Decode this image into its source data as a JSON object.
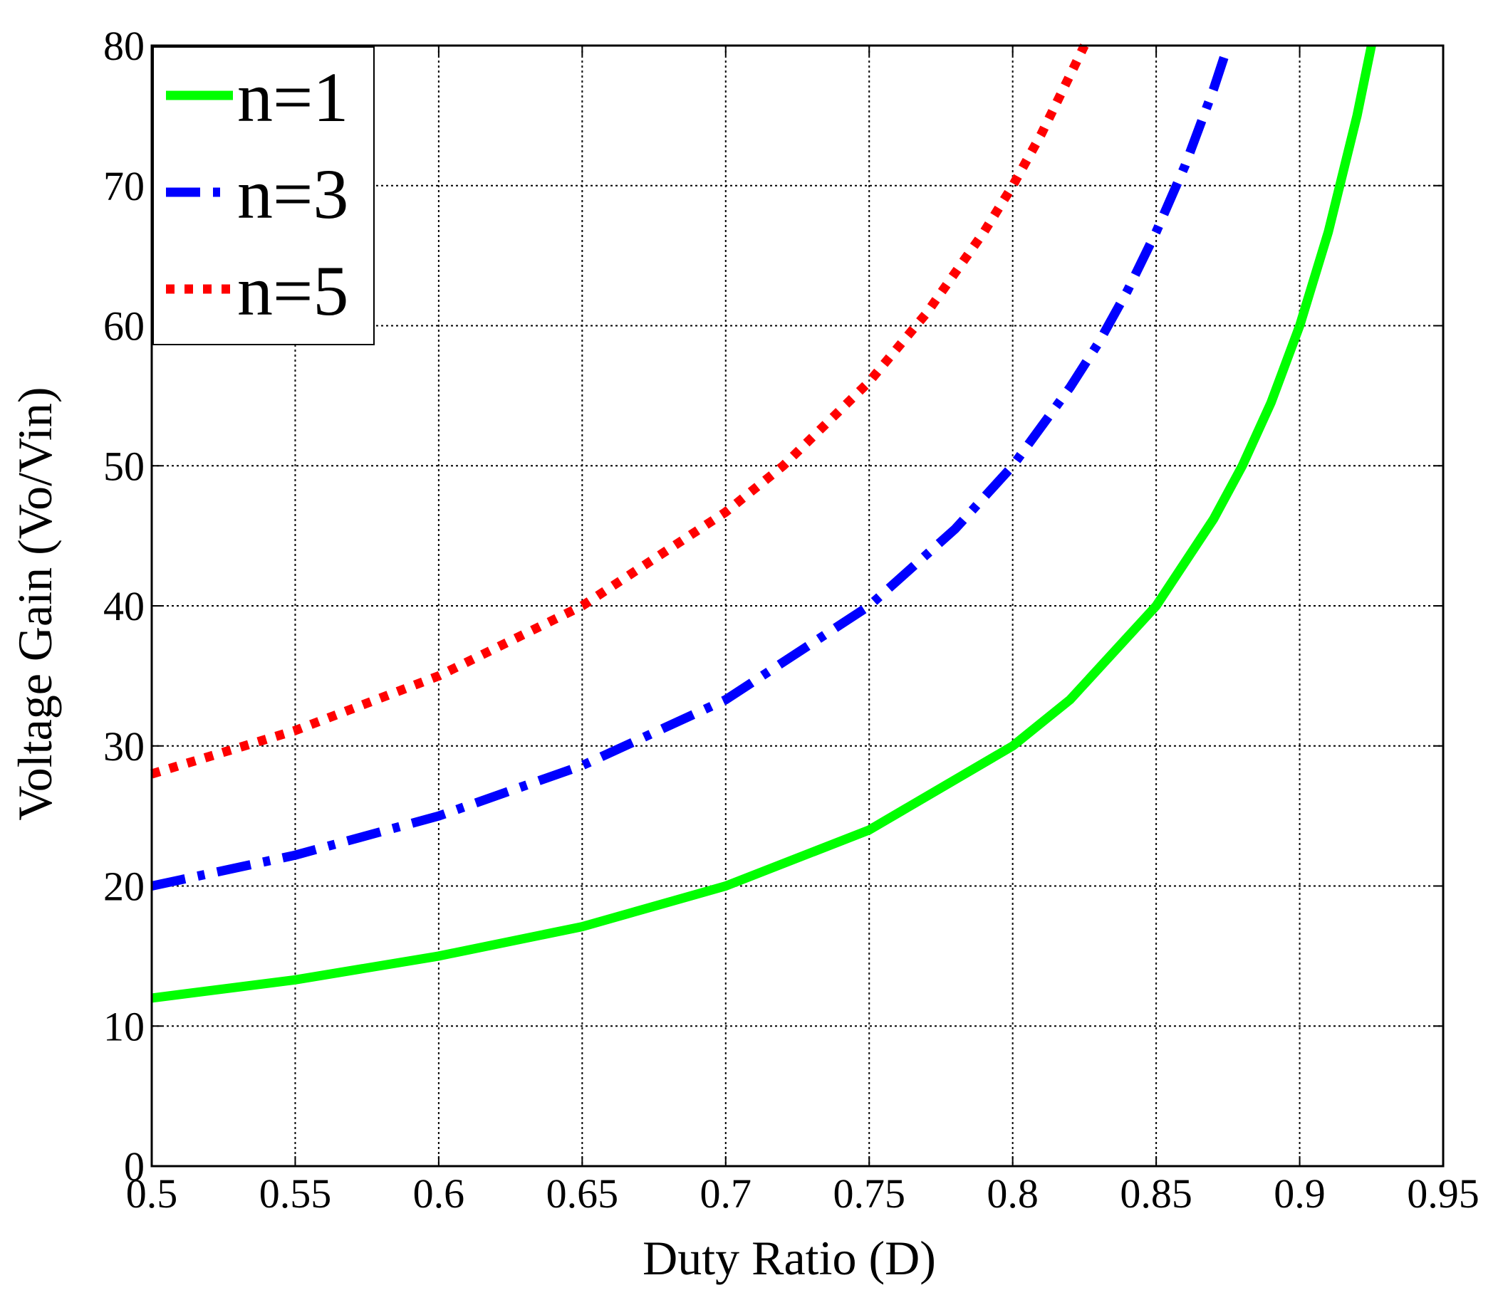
{
  "chart_data": {
    "type": "line",
    "xlabel": "Duty Ratio (D)",
    "ylabel": "Voltage Gain (Vo/Vin)",
    "xlim": [
      0.5,
      0.95
    ],
    "ylim": [
      0,
      80
    ],
    "xticks": [
      "0.5",
      "0.55",
      "0.6",
      "0.65",
      "0.7",
      "0.75",
      "0.8",
      "0.85",
      "0.9",
      "0.95"
    ],
    "yticks": [
      "0",
      "10",
      "20",
      "30",
      "40",
      "50",
      "60",
      "70",
      "80"
    ],
    "grid": true,
    "legend_position": "top-left",
    "series": [
      {
        "name": "n=1",
        "color": "#00ff00",
        "style": "solid",
        "x": [
          0.5,
          0.55,
          0.6,
          0.65,
          0.7,
          0.75,
          0.8,
          0.82,
          0.85,
          0.87,
          0.88,
          0.89,
          0.9,
          0.91,
          0.92,
          0.925
        ],
        "y": [
          12,
          13.3,
          15,
          17.1,
          20,
          24,
          30,
          33.3,
          40,
          46.2,
          50,
          54.5,
          60,
          66.7,
          75,
          80
        ]
      },
      {
        "name": "n=3",
        "color": "#0000ff",
        "style": "dashdot",
        "x": [
          0.5,
          0.55,
          0.6,
          0.65,
          0.7,
          0.75,
          0.78,
          0.8,
          0.82,
          0.83,
          0.84,
          0.85,
          0.86,
          0.87,
          0.875
        ],
        "y": [
          20,
          22.2,
          25,
          28.6,
          33.3,
          40,
          45.5,
          50,
          55.6,
          58.8,
          62.5,
          66.7,
          71.4,
          76.9,
          80
        ]
      },
      {
        "name": "n=5",
        "color": "#ff0000",
        "style": "dotted",
        "x": [
          0.5,
          0.55,
          0.6,
          0.65,
          0.7,
          0.72,
          0.75,
          0.77,
          0.79,
          0.8,
          0.81,
          0.825
        ],
        "y": [
          28,
          31.1,
          35,
          40,
          46.7,
          50,
          56,
          60.9,
          66.7,
          70,
          73.7,
          80
        ]
      }
    ]
  }
}
